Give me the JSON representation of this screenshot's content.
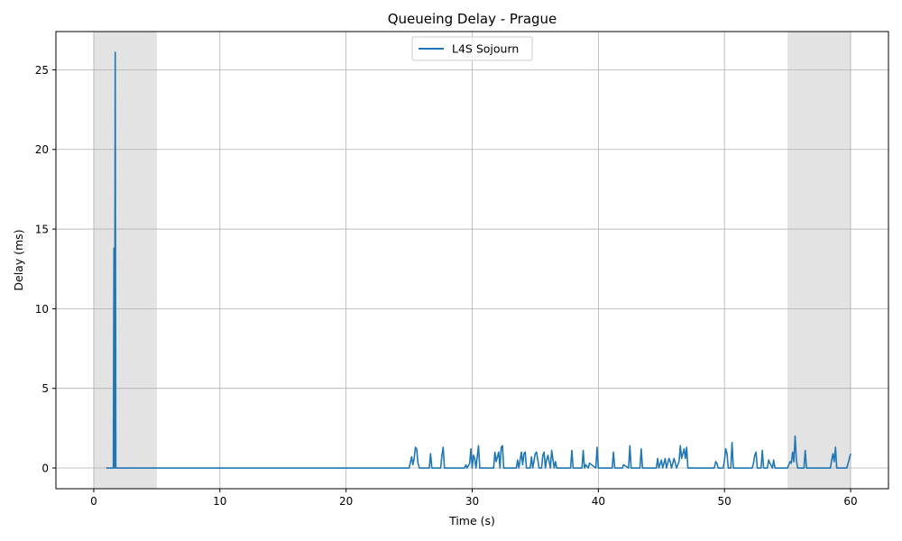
{
  "chart_data": {
    "type": "line",
    "title": "Queueing Delay - Prague",
    "xlabel": "Time (s)",
    "ylabel": "Delay (ms)",
    "xlim": [
      -3,
      63
    ],
    "ylim": [
      -1.3,
      27.4
    ],
    "xticks": [
      0,
      10,
      20,
      30,
      40,
      50,
      60
    ],
    "yticks": [
      0,
      5,
      10,
      15,
      20,
      25
    ],
    "grid": true,
    "legend_position": "upper center",
    "shaded_regions": [
      {
        "x": [
          0,
          5
        ],
        "color": "#e3e3e3"
      },
      {
        "x": [
          55,
          60
        ],
        "color": "#e3e3e3"
      }
    ],
    "series": [
      {
        "name": "L4S Sojourn",
        "color": "#1f77b4",
        "x": [
          1.0,
          1.55,
          1.6,
          1.65,
          1.7,
          1.75,
          1.8,
          1.85,
          25.0,
          25.2,
          25.3,
          25.4,
          25.5,
          25.6,
          25.7,
          25.75,
          25.8,
          26.6,
          26.7,
          26.8,
          27.5,
          27.6,
          27.7,
          27.8,
          29.4,
          29.5,
          29.6,
          29.8,
          29.9,
          30.0,
          30.1,
          30.2,
          30.3,
          30.5,
          30.6,
          31.7,
          31.8,
          31.9,
          32.1,
          32.2,
          32.3,
          32.4,
          32.5,
          33.5,
          33.6,
          33.7,
          33.9,
          34.0,
          34.1,
          34.2,
          34.3,
          34.6,
          34.7,
          34.8,
          35.0,
          35.1,
          35.3,
          35.5,
          35.6,
          35.7,
          35.8,
          35.9,
          36.0,
          36.2,
          36.3,
          36.5,
          36.6,
          36.7,
          37.8,
          37.9,
          38.0,
          38.7,
          38.8,
          38.9,
          39.0,
          39.2,
          39.3,
          39.8,
          39.9,
          40.0,
          41.1,
          41.2,
          41.3,
          41.9,
          42.0,
          42.4,
          42.5,
          42.6,
          43.3,
          43.4,
          43.5,
          44.6,
          44.7,
          44.8,
          45.0,
          45.1,
          45.3,
          45.4,
          45.6,
          45.7,
          45.8,
          46.0,
          46.2,
          46.4,
          46.5,
          46.6,
          46.8,
          46.9,
          47.0,
          47.1,
          49.2,
          49.3,
          49.4,
          49.5,
          49.9,
          50.0,
          50.1,
          50.2,
          50.3,
          50.5,
          50.6,
          50.7,
          52.2,
          52.3,
          52.4,
          52.5,
          52.6,
          52.9,
          53.0,
          53.1,
          53.4,
          53.5,
          53.6,
          53.8,
          53.9,
          54.0,
          55.0,
          55.2,
          55.3,
          55.4,
          55.5,
          55.6,
          55.7,
          55.8,
          56.3,
          56.4,
          56.5,
          58.4,
          58.5,
          58.6,
          58.7,
          58.8,
          58.9,
          59.0,
          59.7,
          59.8,
          59.9,
          60.0
        ],
        "y": [
          0.0,
          0.0,
          13.8,
          0.0,
          26.1,
          0.0,
          0.0,
          0.0,
          0.0,
          0.7,
          0.2,
          0.6,
          1.3,
          1.2,
          0.3,
          0.2,
          0.0,
          0.0,
          0.9,
          0.0,
          0.0,
          0.8,
          1.3,
          0.0,
          0.0,
          0.2,
          0.0,
          0.3,
          1.2,
          0.0,
          0.8,
          0.6,
          0.0,
          1.4,
          0.0,
          0.0,
          1.0,
          0.4,
          1.0,
          0.0,
          1.3,
          1.4,
          0.0,
          0.0,
          0.5,
          0.0,
          1.0,
          0.2,
          0.9,
          1.0,
          0.0,
          0.0,
          0.7,
          0.0,
          0.9,
          1.0,
          0.0,
          0.0,
          0.8,
          1.0,
          0.0,
          0.5,
          0.8,
          0.0,
          1.1,
          0.0,
          0.4,
          0.0,
          0.0,
          1.1,
          0.0,
          0.0,
          1.1,
          0.0,
          0.2,
          0.0,
          0.3,
          0.0,
          1.3,
          0.0,
          0.0,
          1.0,
          0.0,
          0.0,
          0.2,
          0.0,
          1.4,
          0.0,
          0.0,
          1.2,
          0.0,
          0.0,
          0.6,
          0.0,
          0.5,
          0.0,
          0.6,
          0.0,
          0.6,
          0.4,
          0.0,
          0.6,
          0.0,
          0.4,
          1.4,
          0.6,
          1.2,
          0.6,
          1.3,
          0.0,
          0.0,
          0.4,
          0.3,
          0.0,
          0.0,
          0.5,
          1.2,
          0.9,
          0.0,
          0.0,
          1.6,
          0.0,
          0.0,
          0.3,
          0.8,
          1.0,
          0.0,
          0.0,
          1.1,
          0.0,
          0.0,
          0.5,
          0.3,
          0.0,
          0.5,
          0.0,
          0.0,
          0.4,
          0.3,
          1.0,
          0.4,
          2.0,
          0.5,
          0.0,
          0.0,
          1.1,
          0.0,
          0.0,
          0.5,
          0.9,
          0.4,
          1.3,
          0.0,
          0.0,
          0.0,
          0.3,
          0.6,
          0.9
        ]
      }
    ]
  }
}
